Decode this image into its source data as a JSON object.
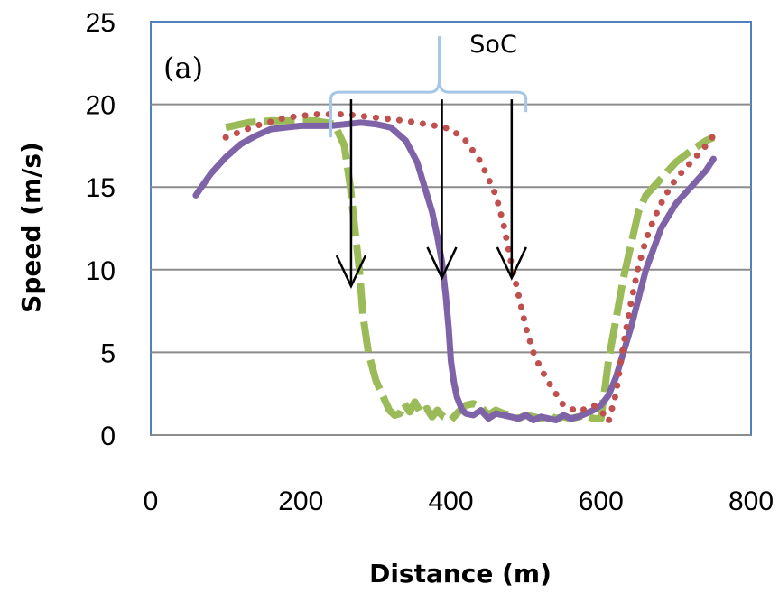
{
  "chart_data": {
    "type": "line",
    "title": "",
    "panel_label": "(a)",
    "xlabel": "Distance (m)",
    "ylabel": "Speed (m/s)",
    "xlim": [
      0,
      800
    ],
    "ylim": [
      0,
      25
    ],
    "x_ticks": [
      0,
      200,
      400,
      600,
      800
    ],
    "y_ticks": [
      0,
      5,
      10,
      15,
      20,
      25
    ],
    "grid": "horizontal",
    "legend": "none",
    "series": [
      {
        "style": "dashed",
        "color": "#9bbb59",
        "x": [
          100,
          130,
          160,
          190,
          220,
          245,
          258,
          266,
          272,
          278,
          283,
          290,
          300,
          310,
          318,
          325,
          332,
          338,
          345,
          352,
          360,
          368,
          375,
          382,
          390,
          400,
          410,
          420,
          430,
          440,
          450,
          460,
          470,
          480,
          490,
          500,
          510,
          520,
          530,
          540,
          550,
          560,
          570,
          580,
          590,
          600,
          610,
          620,
          630,
          640,
          650,
          660,
          680,
          700,
          720,
          740,
          750
        ],
        "y": [
          18.6,
          18.9,
          19.0,
          19.0,
          19.0,
          18.8,
          17.5,
          15.0,
          12.5,
          10.0,
          7.2,
          5.0,
          3.3,
          2.3,
          1.5,
          1.2,
          1.3,
          1.9,
          1.4,
          2.0,
          1.3,
          1.6,
          1.1,
          1.5,
          1.1,
          0.9,
          1.4,
          1.8,
          1.9,
          1.7,
          1.2,
          1.5,
          1.3,
          1.2,
          1.0,
          1.2,
          1.1,
          1.0,
          1.2,
          1.0,
          1.1,
          1.0,
          1.1,
          1.2,
          1.0,
          1.0,
          4.5,
          7.0,
          9.5,
          11.5,
          13.5,
          14.5,
          15.5,
          16.5,
          17.2,
          17.8,
          18.0
        ]
      },
      {
        "style": "solid",
        "color": "#7f63a8",
        "x": [
          60,
          80,
          100,
          120,
          140,
          160,
          180,
          200,
          220,
          240,
          260,
          280,
          300,
          320,
          340,
          355,
          365,
          375,
          382,
          388,
          393,
          397,
          400,
          404,
          408,
          415,
          420,
          430,
          440,
          450,
          460,
          470,
          480,
          490,
          500,
          510,
          520,
          530,
          540,
          550,
          560,
          570,
          580,
          590,
          600,
          610,
          620,
          640,
          660,
          680,
          700,
          720,
          740,
          750
        ],
        "y": [
          14.5,
          15.8,
          16.8,
          17.6,
          18.1,
          18.5,
          18.6,
          18.7,
          18.7,
          18.7,
          18.8,
          18.9,
          18.8,
          18.6,
          17.8,
          16.5,
          15.0,
          13.5,
          12.0,
          10.5,
          8.5,
          6.5,
          4.5,
          3.2,
          2.3,
          1.5,
          1.3,
          1.2,
          1.5,
          1.0,
          1.3,
          1.2,
          1.1,
          1.0,
          1.2,
          0.9,
          1.1,
          1.0,
          0.9,
          1.2,
          1.0,
          1.1,
          1.3,
          1.5,
          1.8,
          2.4,
          3.5,
          6.5,
          10.0,
          12.5,
          14.0,
          15.0,
          16.0,
          16.7
        ]
      },
      {
        "style": "dotted",
        "color": "#c0504d",
        "x": [
          100,
          140,
          180,
          220,
          260,
          300,
          340,
          380,
          400,
          420,
          440,
          460,
          470,
          480,
          490,
          500,
          510,
          520,
          530,
          540,
          550,
          560,
          570,
          580,
          590,
          600,
          610,
          620,
          630,
          640,
          650,
          660,
          670,
          680,
          690,
          700,
          720,
          740,
          750
        ],
        "y": [
          18.0,
          18.7,
          19.2,
          19.4,
          19.4,
          19.2,
          19.0,
          18.7,
          18.5,
          17.8,
          16.5,
          14.5,
          12.8,
          10.5,
          8.5,
          6.5,
          5.0,
          4.0,
          3.2,
          2.5,
          1.8,
          1.6,
          1.4,
          1.6,
          1.8,
          1.5,
          0.8,
          2.5,
          5.5,
          8.0,
          10.2,
          11.8,
          13.0,
          14.0,
          14.8,
          15.5,
          16.5,
          17.5,
          18.1
        ]
      }
    ],
    "annotations": {
      "brace_label": "SoC",
      "arrows": [
        {
          "x": 267,
          "y_from": 20.3,
          "y_to": 9.0
        },
        {
          "x": 388,
          "y_from": 20.3,
          "y_to": 9.5
        },
        {
          "x": 481,
          "y_from": 20.3,
          "y_to": 9.5
        }
      ],
      "brace_x_range": [
        240,
        500
      ]
    }
  }
}
